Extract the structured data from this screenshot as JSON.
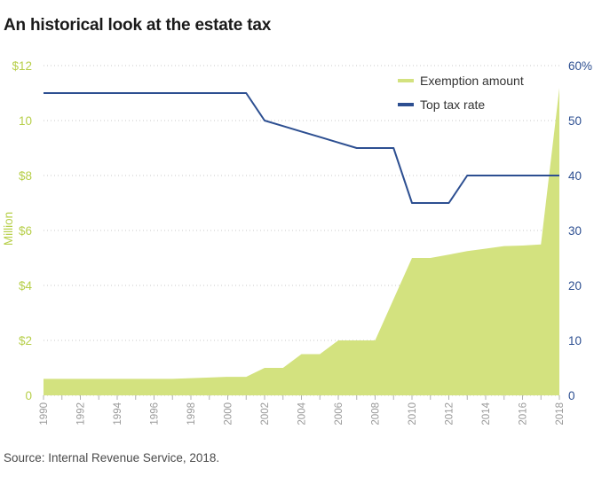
{
  "title": "An historical look at the estate tax",
  "source": "Source: Internal Revenue Service, 2018.",
  "colors": {
    "exemption": "#d3e27f",
    "exemption_text": "#b7cf4a",
    "rate": "#2d4f91",
    "grid": "#c8c8c8",
    "axis_x_text": "#9a9a9a"
  },
  "chart_data": {
    "type": "area",
    "title": "An historical look at the estate tax",
    "x": [
      1990,
      1991,
      1992,
      1993,
      1994,
      1995,
      1996,
      1997,
      1998,
      1999,
      2000,
      2001,
      2002,
      2003,
      2004,
      2005,
      2006,
      2007,
      2008,
      2009,
      2010,
      2011,
      2012,
      2013,
      2014,
      2015,
      2016,
      2017,
      2018
    ],
    "x_tick_labels": [
      "1990",
      "1992",
      "1994",
      "1996",
      "1998",
      "2000",
      "2002",
      "2004",
      "2006",
      "2008",
      "2010",
      "2012",
      "2014",
      "2016",
      "2018"
    ],
    "series": [
      {
        "name": "Exemption amount",
        "type": "area",
        "axis": "left",
        "unit": "$ million",
        "values": [
          0.6,
          0.6,
          0.6,
          0.6,
          0.6,
          0.6,
          0.6,
          0.6,
          0.625,
          0.65,
          0.675,
          0.675,
          1.0,
          1.0,
          1.5,
          1.5,
          2.0,
          2.0,
          2.0,
          3.5,
          5.0,
          5.0,
          5.12,
          5.25,
          5.34,
          5.43,
          5.45,
          5.49,
          11.18
        ]
      },
      {
        "name": "Top tax rate",
        "type": "line",
        "axis": "right",
        "unit": "%",
        "values": [
          55,
          55,
          55,
          55,
          55,
          55,
          55,
          55,
          55,
          55,
          55,
          55,
          50,
          49,
          48,
          47,
          46,
          45,
          45,
          45,
          35,
          35,
          35,
          40,
          40,
          40,
          40,
          40,
          40
        ]
      }
    ],
    "ylabel": "Million",
    "ylim": [
      0,
      12
    ],
    "y_tick_labels": [
      "0",
      "$2",
      "$4",
      "$6",
      "$8",
      "10",
      "$12"
    ],
    "y2lim": [
      0,
      60
    ],
    "y2_tick_labels": [
      "0",
      "10",
      "20",
      "30",
      "40",
      "50",
      "60%"
    ],
    "legend": {
      "position": "top-right",
      "items": [
        "Exemption amount",
        "Top tax rate"
      ]
    },
    "grid": true
  }
}
